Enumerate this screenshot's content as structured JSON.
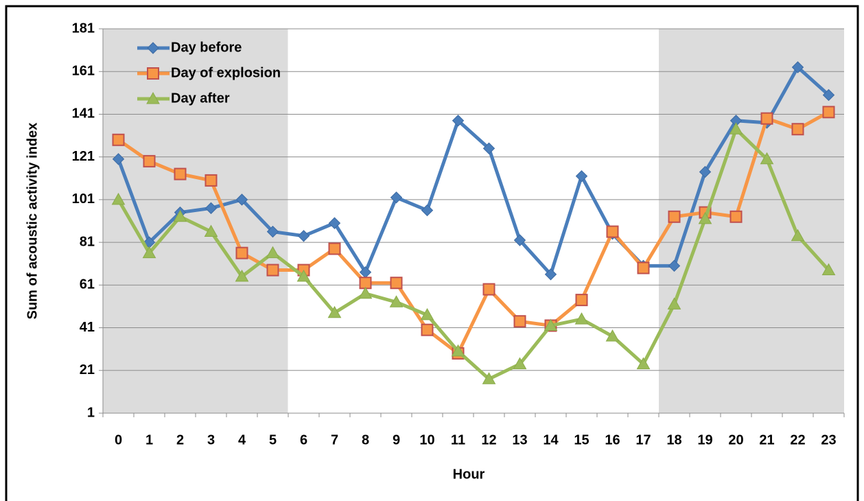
{
  "chart_data": {
    "type": "line",
    "x_label": "Hour",
    "y_label": "Sum of acoustic activity index",
    "categories": [
      "0",
      "1",
      "2",
      "3",
      "4",
      "5",
      "6",
      "7",
      "8",
      "9",
      "10",
      "11",
      "12",
      "13",
      "14",
      "15",
      "16",
      "17",
      "18",
      "19",
      "20",
      "21",
      "22",
      "23"
    ],
    "shaded": [
      [
        "0",
        "5"
      ],
      [
        "18",
        "23"
      ]
    ],
    "ylim": [
      1,
      181
    ],
    "yticks": [
      1,
      21,
      41,
      61,
      81,
      101,
      121,
      141,
      161,
      181
    ],
    "grid": true,
    "legend": "upper left",
    "series": [
      {
        "name": "Day before",
        "color": "#4a7ebb",
        "marker": "diamond",
        "values": [
          120,
          81,
          95,
          97,
          101,
          86,
          84,
          90,
          67,
          102,
          96,
          138,
          125,
          82,
          66,
          112,
          85,
          70,
          70,
          114,
          138,
          137,
          163,
          150
        ]
      },
      {
        "name": "Day of explosion",
        "color": "#f79646",
        "marker": "square",
        "values": [
          129,
          119,
          113,
          110,
          76,
          68,
          68,
          78,
          62,
          62,
          40,
          29,
          59,
          44,
          42,
          54,
          86,
          69,
          93,
          95,
          93,
          139,
          134,
          142
        ]
      },
      {
        "name": "Day after",
        "color": "#9bbb59",
        "marker": "triangle",
        "values": [
          101,
          76,
          93,
          86,
          65,
          76,
          65,
          48,
          57,
          53,
          47,
          30,
          17,
          24,
          42,
          45,
          37,
          24,
          52,
          92,
          134,
          120,
          84,
          68
        ]
      }
    ]
  }
}
